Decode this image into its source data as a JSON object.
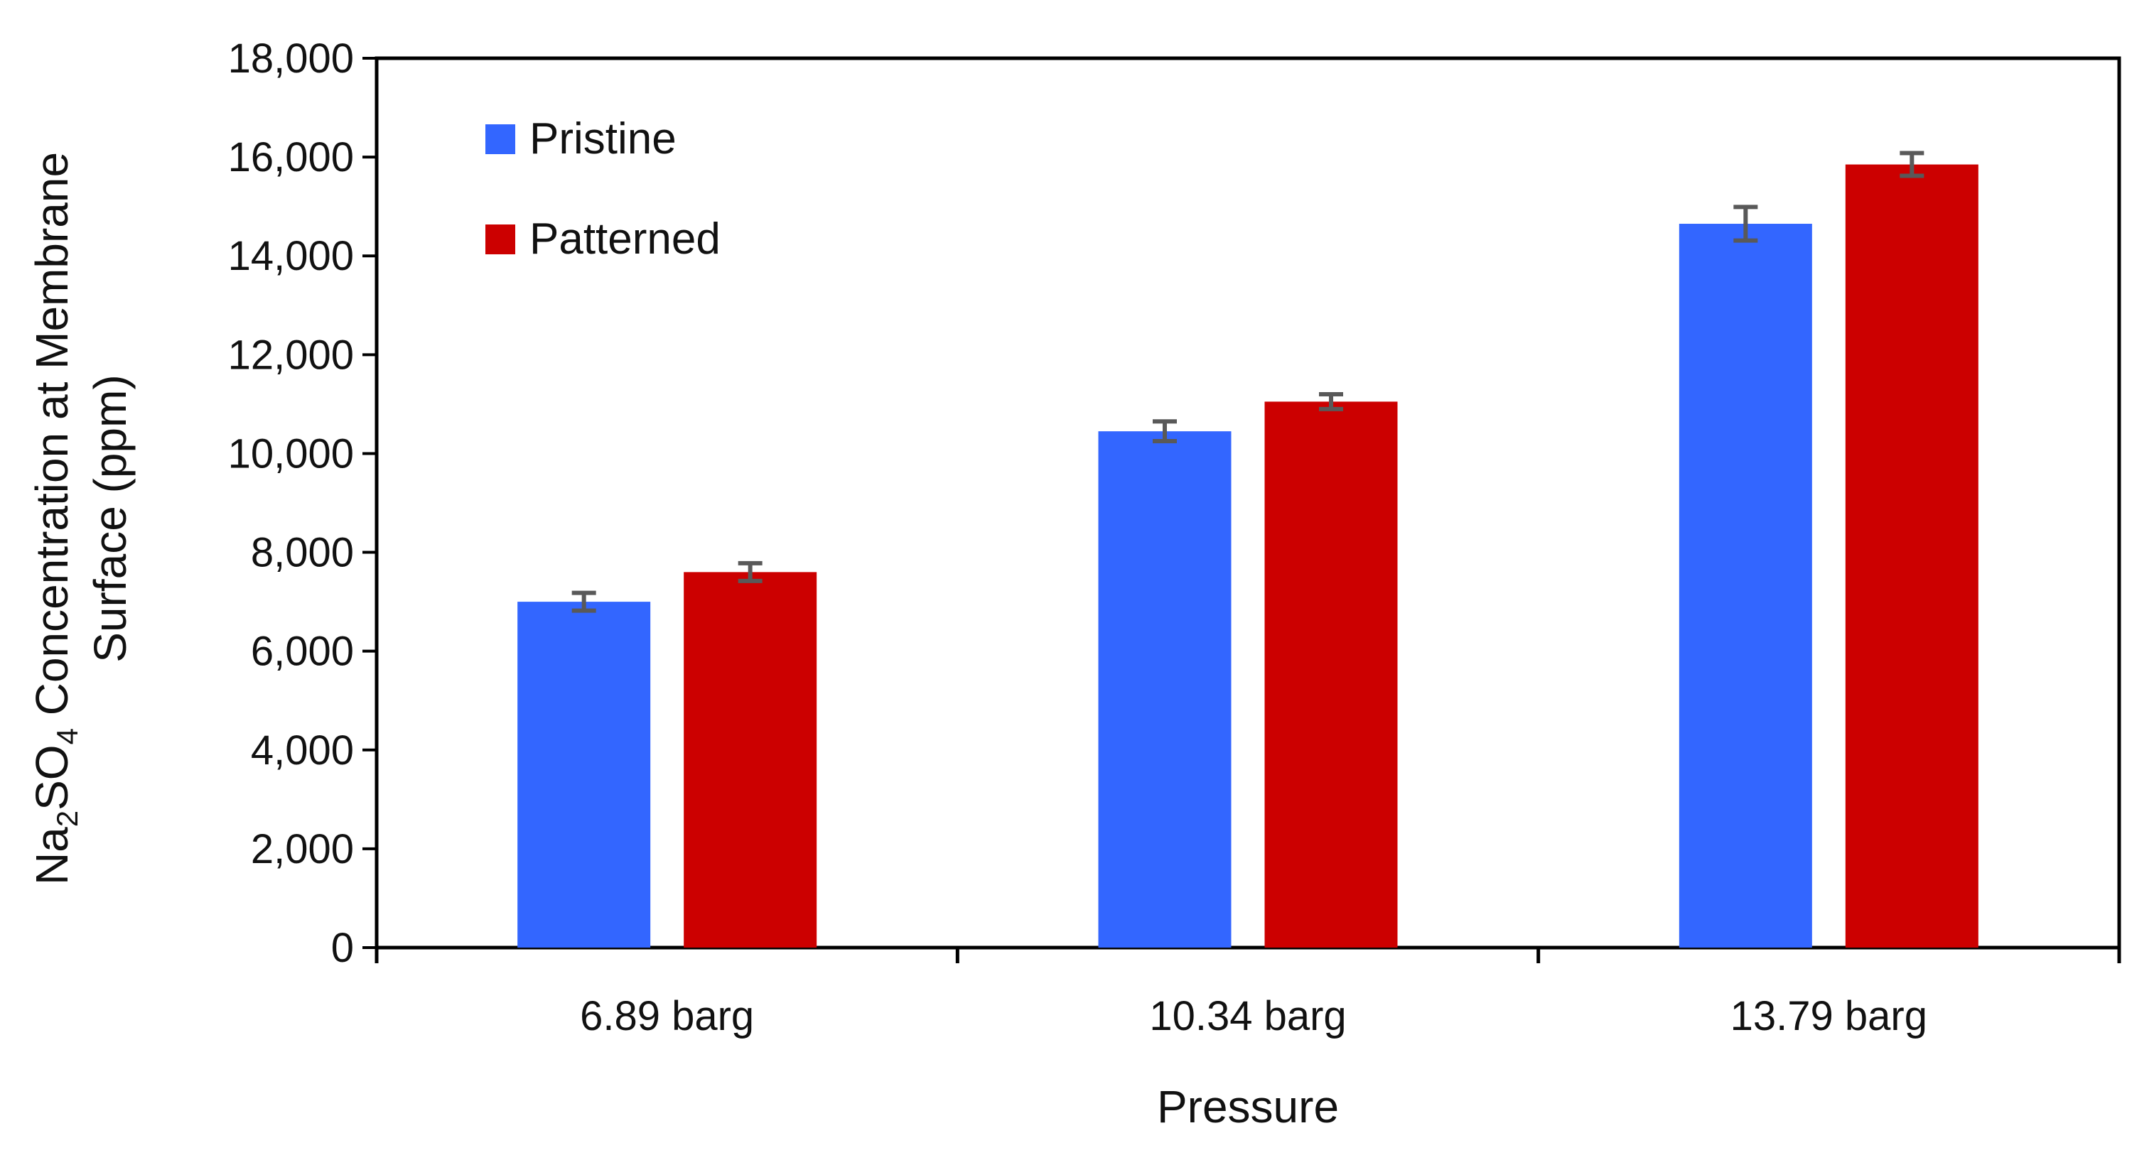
{
  "chart_data": {
    "type": "bar",
    "title": "",
    "xlabel": "Pressure",
    "ylabel": {
      "prefix": "Na",
      "sub1": "2",
      "middle": "SO",
      "sub2": "4",
      "suffix": " Concentration at Membrane",
      "line2": "Surface (ppm)"
    },
    "categories": [
      "6.89 barg",
      "10.34 barg",
      "13.79 barg"
    ],
    "series": [
      {
        "name": "Pristine",
        "color": "#3366FF",
        "values": [
          7000,
          10450,
          14650
        ],
        "errors": [
          180,
          200,
          340
        ]
      },
      {
        "name": "Patterned",
        "color": "#CC0000",
        "values": [
          7600,
          11050,
          15850
        ],
        "errors": [
          180,
          150,
          230
        ]
      }
    ],
    "ylim": [
      0,
      18000
    ],
    "yticks": [
      0,
      2000,
      4000,
      6000,
      8000,
      10000,
      12000,
      14000,
      16000,
      18000
    ],
    "ytick_labels": [
      "0",
      "2,000",
      "4,000",
      "6,000",
      "8,000",
      "10,000",
      "12,000",
      "14,000",
      "16,000",
      "18,000"
    ],
    "grid": false,
    "legend_position": "top-left",
    "error_bar_color": "#595959"
  }
}
